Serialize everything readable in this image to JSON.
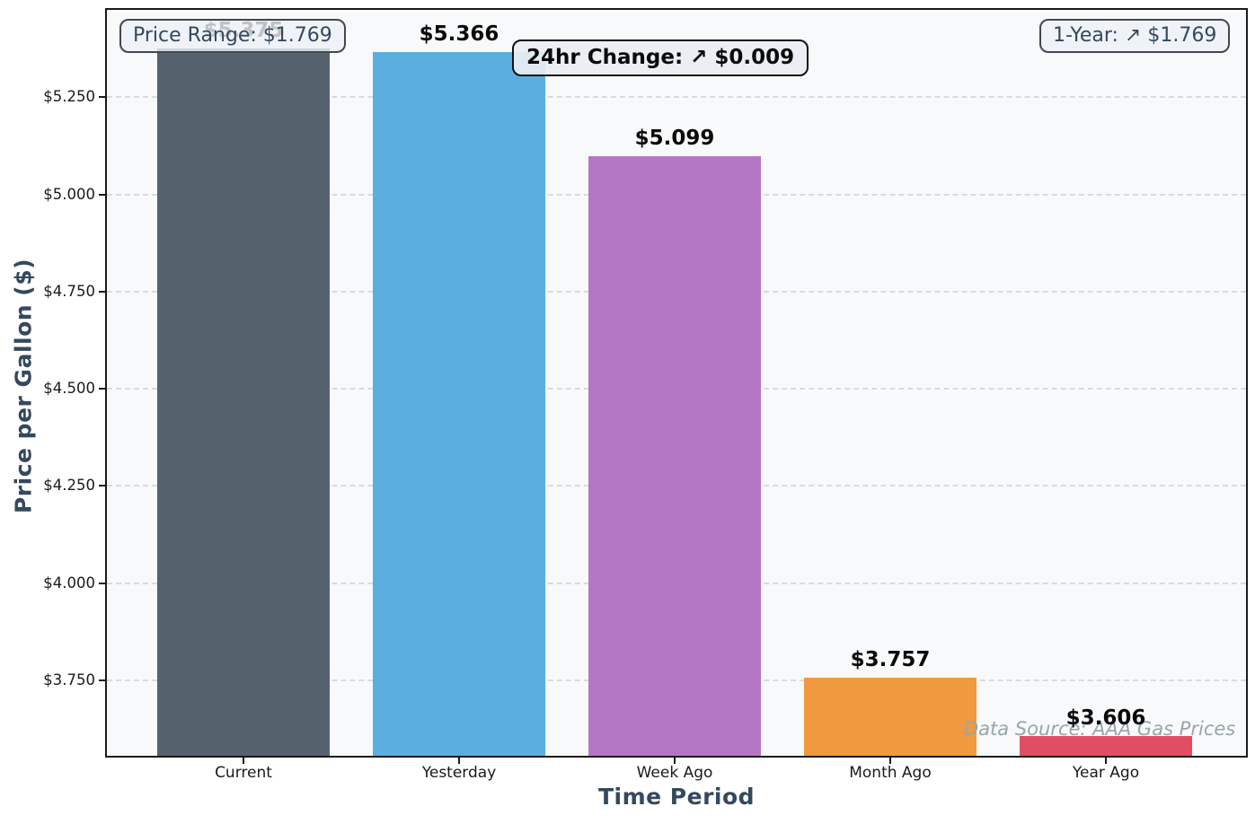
{
  "chart_data": {
    "type": "bar",
    "title": "",
    "categories": [
      "Current",
      "Yesterday",
      "Week Ago",
      "Month Ago",
      "Year Ago"
    ],
    "values": [
      5.375,
      5.366,
      5.099,
      3.757,
      3.606
    ],
    "bar_labels": [
      "$5.375",
      "$5.366",
      "$5.099",
      "$3.757",
      "$3.606"
    ],
    "bar_colors": [
      "#55626E",
      "#5AAEE0",
      "#B377C4",
      "#F0993E",
      "#E04E63"
    ],
    "xlabel": "Time Period",
    "ylabel": "Price per Gallon ($)",
    "ylim": [
      3.556,
      5.475
    ],
    "yticks": [
      3.75,
      4.0,
      4.25,
      4.5,
      4.75,
      5.0,
      5.25
    ],
    "ytick_labels": [
      "$3.750",
      "$4.000",
      "$4.250",
      "$4.500",
      "$4.750",
      "$5.000",
      "$5.250"
    ],
    "grid": "horizontal-dashed",
    "legend": "none",
    "annotations": [
      {
        "text": "Price Range: $1.769",
        "position": "top-left",
        "style": "light"
      },
      {
        "text": "24hr Change: ↗ $0.009",
        "position": "top-center",
        "style": "bold"
      },
      {
        "text": "1-Year: ↗ $1.769",
        "position": "top-right",
        "style": "light"
      },
      {
        "text": "Data Source: AAA Gas Prices",
        "position": "bottom-right",
        "style": "note"
      }
    ]
  },
  "colors": {
    "figure_bg": "#ffffff",
    "plot_bg": "#f8f9fa",
    "spine": "#1a1a1a",
    "gridline": "#d8dbde",
    "tick_label": "#1a1a1a",
    "axis_label": "#34495e",
    "annotation_text": "#36485c",
    "source_note_text": "#98a6ab"
  }
}
